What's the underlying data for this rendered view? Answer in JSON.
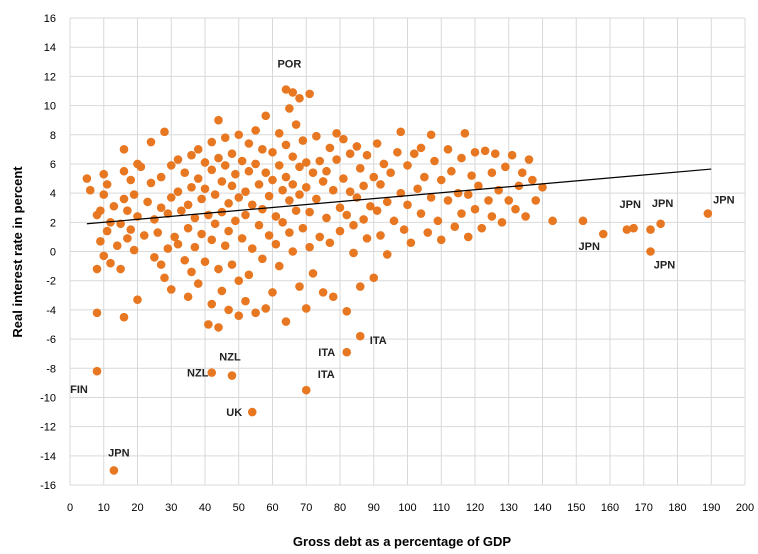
{
  "chart_data": {
    "type": "scatter",
    "title": "",
    "xlabel": "Gross debt as a percentage of GDP",
    "ylabel": "Real interest rate in percent",
    "xlim": [
      0,
      200
    ],
    "ylim": [
      -16,
      16
    ],
    "x_ticks": [
      0,
      10,
      20,
      30,
      40,
      50,
      60,
      70,
      80,
      90,
      100,
      110,
      120,
      130,
      140,
      150,
      160,
      170,
      180,
      190,
      200
    ],
    "y_ticks": [
      -16,
      -14,
      -12,
      -10,
      -8,
      -6,
      -4,
      -2,
      0,
      2,
      4,
      6,
      8,
      10,
      12,
      14,
      16
    ],
    "grid": true,
    "legend": "none",
    "colors": {
      "points": "#E87722",
      "trendline": "#000000",
      "grid": "#d9d9d9"
    },
    "trendline": {
      "x": [
        5,
        190
      ],
      "y": [
        1.9,
        5.65
      ]
    },
    "series": [
      {
        "points": [
          [
            5,
            5.0
          ],
          [
            6,
            4.2
          ],
          [
            8,
            2.5
          ],
          [
            8,
            -1.2
          ],
          [
            8,
            -4.2
          ],
          [
            9,
            2.8
          ],
          [
            9,
            0.7
          ],
          [
            10,
            5.3
          ],
          [
            10,
            3.9
          ],
          [
            10,
            -0.3
          ],
          [
            11,
            4.6
          ],
          [
            11,
            1.4
          ],
          [
            12,
            2.0
          ],
          [
            12,
            -0.8
          ],
          [
            13,
            3.1
          ],
          [
            14,
            0.4
          ],
          [
            15,
            1.9
          ],
          [
            15,
            -1.2
          ],
          [
            16,
            7.0
          ],
          [
            16,
            5.5
          ],
          [
            16,
            3.6
          ],
          [
            16,
            -4.5
          ],
          [
            17,
            0.9
          ],
          [
            17,
            2.8
          ],
          [
            18,
            4.9
          ],
          [
            18,
            1.5
          ],
          [
            19,
            3.9
          ],
          [
            19,
            0.1
          ],
          [
            20,
            6.0
          ],
          [
            20,
            2.4
          ],
          [
            20,
            -3.3
          ],
          [
            21,
            5.8
          ],
          [
            22,
            1.1
          ],
          [
            23,
            3.4
          ],
          [
            24,
            7.5
          ],
          [
            24,
            4.7
          ],
          [
            25,
            2.2
          ],
          [
            25,
            -0.4
          ],
          [
            26,
            1.3
          ],
          [
            27,
            5.1
          ],
          [
            27,
            3.0
          ],
          [
            27,
            -0.9
          ],
          [
            28,
            8.2
          ],
          [
            28,
            -1.8
          ],
          [
            29,
            2.6
          ],
          [
            29,
            0.2
          ],
          [
            30,
            5.9
          ],
          [
            30,
            3.7
          ],
          [
            30,
            -2.6
          ],
          [
            31,
            1.0
          ],
          [
            32,
            6.3
          ],
          [
            32,
            4.1
          ],
          [
            32,
            0.5
          ],
          [
            33,
            2.8
          ],
          [
            34,
            -0.6
          ],
          [
            34,
            5.4
          ],
          [
            35,
            3.2
          ],
          [
            35,
            1.6
          ],
          [
            35,
            -3.1
          ],
          [
            36,
            6.6
          ],
          [
            36,
            4.4
          ],
          [
            36,
            -1.4
          ],
          [
            37,
            2.3
          ],
          [
            37,
            0.3
          ],
          [
            38,
            7.0
          ],
          [
            38,
            5.0
          ],
          [
            38,
            -2.2
          ],
          [
            39,
            3.6
          ],
          [
            39,
            1.2
          ],
          [
            40,
            6.1
          ],
          [
            40,
            4.3
          ],
          [
            40,
            -0.7
          ],
          [
            41,
            2.5
          ],
          [
            41,
            -5.0
          ],
          [
            42,
            7.5
          ],
          [
            42,
            5.6
          ],
          [
            42,
            0.8
          ],
          [
            42,
            -3.6
          ],
          [
            43,
            3.9
          ],
          [
            43,
            1.9
          ],
          [
            44,
            9.0
          ],
          [
            44,
            6.4
          ],
          [
            44,
            -1.2
          ],
          [
            44,
            -5.2
          ],
          [
            45,
            4.8
          ],
          [
            45,
            2.7
          ],
          [
            45,
            -2.7
          ],
          [
            46,
            7.8
          ],
          [
            46,
            5.9
          ],
          [
            46,
            0.4
          ],
          [
            47,
            3.3
          ],
          [
            47,
            1.4
          ],
          [
            47,
            -4.0
          ],
          [
            48,
            6.7
          ],
          [
            48,
            4.5
          ],
          [
            48,
            -0.9
          ],
          [
            49,
            2.1
          ],
          [
            49,
            5.3
          ],
          [
            50,
            8.0
          ],
          [
            50,
            3.7
          ],
          [
            50,
            -2.0
          ],
          [
            50,
            -4.4
          ],
          [
            51,
            6.2
          ],
          [
            51,
            0.9
          ],
          [
            52,
            4.1
          ],
          [
            52,
            2.5
          ],
          [
            52,
            -3.4
          ],
          [
            53,
            7.4
          ],
          [
            53,
            5.5
          ],
          [
            53,
            -1.6
          ],
          [
            54,
            3.2
          ],
          [
            54,
            0.2
          ],
          [
            55,
            8.3
          ],
          [
            55,
            6.0
          ],
          [
            55,
            -4.2
          ],
          [
            56,
            4.6
          ],
          [
            56,
            1.8
          ],
          [
            57,
            7.0
          ],
          [
            57,
            2.9
          ],
          [
            57,
            -0.5
          ],
          [
            58,
            9.3
          ],
          [
            58,
            5.4
          ],
          [
            58,
            -3.9
          ],
          [
            59,
            3.8
          ],
          [
            59,
            1.1
          ],
          [
            60,
            6.8
          ],
          [
            60,
            4.9
          ],
          [
            60,
            -2.8
          ],
          [
            61,
            2.4
          ],
          [
            61,
            0.5
          ],
          [
            62,
            8.1
          ],
          [
            62,
            5.9
          ],
          [
            62,
            -1.0
          ],
          [
            63,
            4.2
          ],
          [
            63,
            2.0
          ],
          [
            64,
            7.3
          ],
          [
            64,
            5.1
          ],
          [
            64,
            -4.8
          ],
          [
            65,
            3.5
          ],
          [
            65,
            1.3
          ],
          [
            66,
            6.5
          ],
          [
            66,
            4.6
          ],
          [
            66,
            0.0
          ],
          [
            67,
            8.7
          ],
          [
            67,
            2.8
          ],
          [
            68,
            5.8
          ],
          [
            68,
            3.9
          ],
          [
            68,
            -2.4
          ],
          [
            69,
            7.6
          ],
          [
            69,
            1.6
          ],
          [
            70,
            6.1
          ],
          [
            70,
            4.4
          ],
          [
            70,
            -3.9
          ],
          [
            71,
            2.7
          ],
          [
            71,
            0.3
          ],
          [
            72,
            5.4
          ],
          [
            72,
            -1.5
          ],
          [
            73,
            7.9
          ],
          [
            73,
            3.6
          ],
          [
            74,
            6.2
          ],
          [
            74,
            1.0
          ],
          [
            75,
            4.8
          ],
          [
            75,
            -2.8
          ],
          [
            76,
            5.5
          ],
          [
            76,
            2.3
          ],
          [
            77,
            7.1
          ],
          [
            77,
            0.6
          ],
          [
            78,
            4.2
          ],
          [
            78,
            -3.1
          ],
          [
            79,
            8.1
          ],
          [
            79,
            6.3
          ],
          [
            80,
            3.0
          ],
          [
            80,
            1.4
          ],
          [
            81,
            7.7
          ],
          [
            81,
            5.0
          ],
          [
            82,
            2.5
          ],
          [
            82,
            -4.1
          ],
          [
            83,
            6.7
          ],
          [
            83,
            4.1
          ],
          [
            84,
            1.8
          ],
          [
            84,
            -0.1
          ],
          [
            85,
            7.2
          ],
          [
            85,
            3.7
          ],
          [
            86,
            5.7
          ],
          [
            86,
            -2.4
          ],
          [
            87,
            4.5
          ],
          [
            87,
            2.2
          ],
          [
            88,
            6.6
          ],
          [
            88,
            0.9
          ],
          [
            89,
            3.1
          ],
          [
            90,
            5.1
          ],
          [
            90,
            -1.8
          ],
          [
            91,
            7.4
          ],
          [
            91,
            2.8
          ],
          [
            92,
            4.6
          ],
          [
            92,
            1.1
          ],
          [
            93,
            6.0
          ],
          [
            94,
            3.4
          ],
          [
            94,
            -0.2
          ],
          [
            95,
            5.4
          ],
          [
            96,
            2.1
          ],
          [
            97,
            6.8
          ],
          [
            98,
            8.2
          ],
          [
            98,
            4.0
          ],
          [
            99,
            1.5
          ],
          [
            100,
            5.9
          ],
          [
            100,
            3.2
          ],
          [
            101,
            0.6
          ],
          [
            102,
            6.7
          ],
          [
            103,
            4.3
          ],
          [
            104,
            2.6
          ],
          [
            104,
            7.1
          ],
          [
            105,
            5.1
          ],
          [
            106,
            1.3
          ],
          [
            107,
            8.0
          ],
          [
            107,
            3.7
          ],
          [
            108,
            6.2
          ],
          [
            109,
            2.1
          ],
          [
            110,
            4.9
          ],
          [
            110,
            0.8
          ],
          [
            112,
            7.0
          ],
          [
            112,
            3.5
          ],
          [
            113,
            5.5
          ],
          [
            114,
            1.7
          ],
          [
            115,
            4.0
          ],
          [
            116,
            6.4
          ],
          [
            116,
            2.6
          ],
          [
            117,
            8.1
          ],
          [
            118,
            3.9
          ],
          [
            118,
            1.0
          ],
          [
            119,
            5.2
          ],
          [
            120,
            2.9
          ],
          [
            120,
            6.8
          ],
          [
            121,
            4.5
          ],
          [
            122,
            1.6
          ],
          [
            123,
            6.9
          ],
          [
            124,
            3.5
          ],
          [
            125,
            5.4
          ],
          [
            125,
            2.4
          ],
          [
            126,
            6.7
          ],
          [
            127,
            4.2
          ],
          [
            128,
            2.0
          ],
          [
            129,
            5.8
          ],
          [
            130,
            3.5
          ],
          [
            131,
            6.6
          ],
          [
            132,
            2.9
          ],
          [
            133,
            4.5
          ],
          [
            134,
            5.4
          ],
          [
            135,
            2.4
          ],
          [
            136,
            6.3
          ],
          [
            137,
            4.9
          ],
          [
            138,
            3.5
          ],
          [
            140,
            4.4
          ],
          [
            143,
            2.1
          ],
          [
            152,
            2.1
          ],
          [
            158,
            1.2
          ],
          [
            165,
            1.5
          ],
          [
            167,
            1.6
          ],
          [
            172,
            1.5
          ],
          [
            172,
            0.0
          ],
          [
            175,
            1.9
          ],
          [
            189,
            2.6
          ],
          [
            64,
            11.1
          ],
          [
            66,
            10.9
          ],
          [
            68,
            10.5
          ],
          [
            71,
            10.8
          ],
          [
            65,
            9.8
          ],
          [
            8,
            -8.2
          ],
          [
            42,
            -8.3
          ],
          [
            48,
            -8.5
          ],
          [
            82,
            -6.9
          ],
          [
            86,
            -5.8
          ],
          [
            70,
            -9.5
          ],
          [
            54,
            -11.0
          ],
          [
            13,
            -15.0
          ]
        ]
      }
    ],
    "annotations": [
      {
        "text": "POR",
        "x": 65,
        "y": 11.1
      },
      {
        "text": "FIN",
        "x": 8,
        "y": -8.2
      },
      {
        "text": "NZL",
        "x": 42,
        "y": -8.3
      },
      {
        "text": "NZL",
        "x": 48,
        "y": -8.5
      },
      {
        "text": "ITA",
        "x": 82,
        "y": -6.9
      },
      {
        "text": "ITA",
        "x": 86,
        "y": -5.8
      },
      {
        "text": "ITA",
        "x": 70,
        "y": -9.5
      },
      {
        "text": "UK",
        "x": 54,
        "y": -11.0
      },
      {
        "text": "JPN",
        "x": 13,
        "y": -15.0
      },
      {
        "text": "JPN",
        "x": 158,
        "y": 1.2
      },
      {
        "text": "JPN",
        "x": 166,
        "y": 1.6
      },
      {
        "text": "JPN",
        "x": 172,
        "y": 0.0
      },
      {
        "text": "JPN",
        "x": 175,
        "y": 1.9
      },
      {
        "text": "JPN",
        "x": 189,
        "y": 2.6
      }
    ]
  }
}
